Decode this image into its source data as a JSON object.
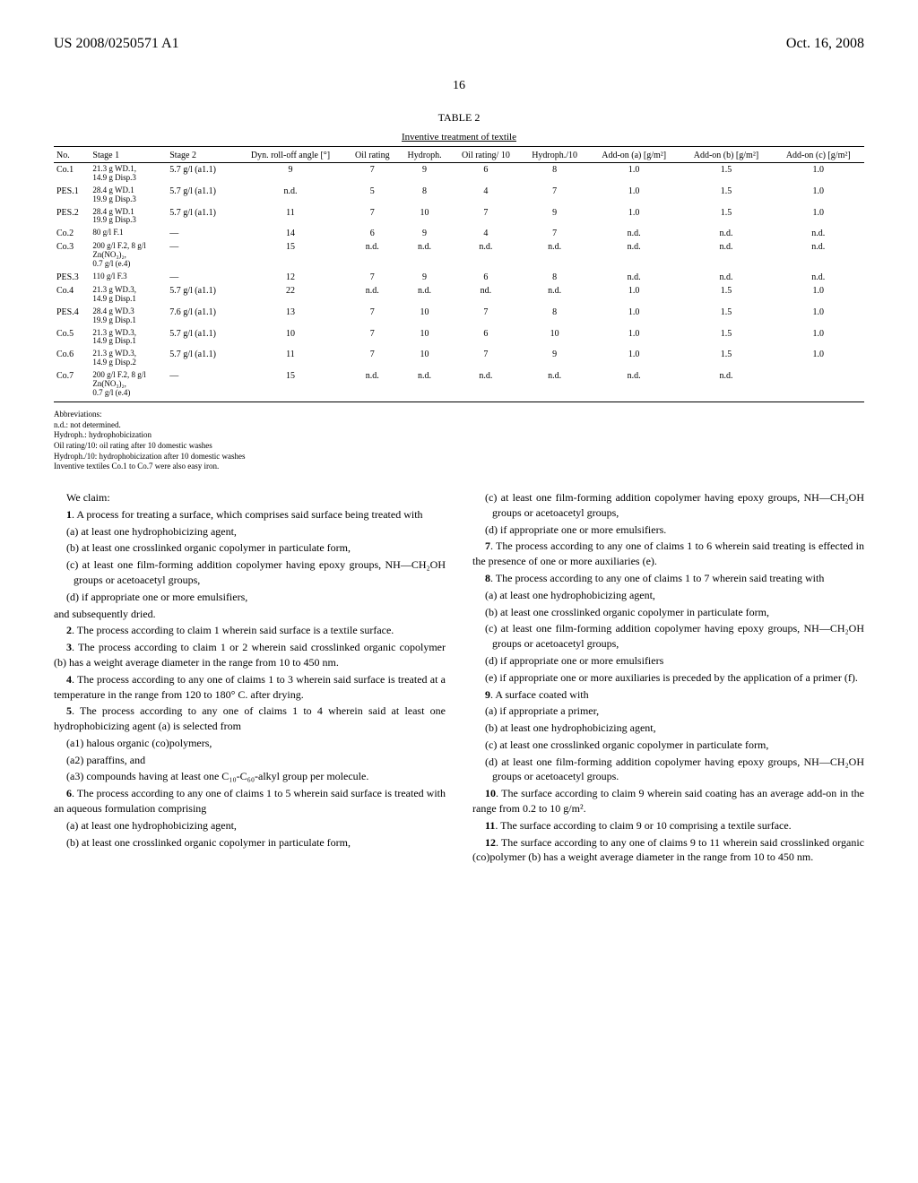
{
  "header": {
    "left": "US 2008/0250571 A1",
    "right": "Oct. 16, 2008"
  },
  "page_number": "16",
  "table": {
    "title": "TABLE 2",
    "subtitle": "Inventive treatment of textile",
    "columns": [
      "No.",
      "Stage 1",
      "Stage 2",
      "Dyn. roll-off angle [°]",
      "Oil rating",
      "Hydroph.",
      "Oil rating/ 10",
      "Hydroph./10",
      "Add-on (a) [g/m²]",
      "Add-on (b) [g/m²]",
      "Add-on (c) [g/m²]"
    ],
    "rows": [
      [
        "Co.1",
        {
          "l1": "21.3 g WD.1,",
          "l2": "14.9 g Disp.3"
        },
        "5.7 g/l (a1.1)",
        "9",
        "7",
        "9",
        "6",
        "8",
        "1.0",
        "1.5",
        "1.0"
      ],
      [
        "PES.1",
        {
          "l1": "28.4 g WD.1",
          "l2": "19.9 g Disp.3"
        },
        "5.7 g/l (a1.1)",
        "n.d.",
        "5",
        "8",
        "4",
        "7",
        "1.0",
        "1.5",
        "1.0"
      ],
      [
        "PES.2",
        {
          "l1": "28.4 g WD.1",
          "l2": "19.9 g Disp.3"
        },
        "5.7 g/l (a1.1)",
        "11",
        "7",
        "10",
        "7",
        "9",
        "1.0",
        "1.5",
        "1.0"
      ],
      [
        "Co.2",
        {
          "l1": "80 g/l F.1"
        },
        "—",
        "14",
        "6",
        "9",
        "4",
        "7",
        "n.d.",
        "n.d.",
        "n.d."
      ],
      [
        "Co.3",
        {
          "l1": "200 g/l F.2, 8 g/l",
          "l2": "Zn(NO₃)₂,",
          "l3": "0.7 g/l (e.4)"
        },
        "—",
        "15",
        "n.d.",
        "n.d.",
        "n.d.",
        "n.d.",
        "n.d.",
        "n.d.",
        "n.d."
      ],
      [
        "PES.3",
        {
          "l1": "110 g/l F.3"
        },
        "—",
        "12",
        "7",
        "9",
        "6",
        "8",
        "n.d.",
        "n.d.",
        "n.d."
      ],
      [
        "Co.4",
        {
          "l1": "21.3 g WD.3,",
          "l2": "14.9 g Disp.1"
        },
        "5.7 g/l (a1.1)",
        "22",
        "n.d.",
        "n.d.",
        "nd.",
        "n.d.",
        "1.0",
        "1.5",
        "1.0"
      ],
      [
        "PES.4",
        {
          "l1": "28.4 g WD.3",
          "l2": "19.9 g Disp.1"
        },
        "7.6 g/l (a1.1)",
        "13",
        "7",
        "10",
        "7",
        "8",
        "1.0",
        "1.5",
        "1.0"
      ],
      [
        "Co.5",
        {
          "l1": "21.3 g WD.3,",
          "l2": "14.9 g Disp.1"
        },
        "5.7 g/l (a1.1)",
        "10",
        "7",
        "10",
        "6",
        "10",
        "1.0",
        "1.5",
        "1.0"
      ],
      [
        "Co.6",
        {
          "l1": "21.3 g WD.3,",
          "l2": "14.9 g Disp.2"
        },
        "5.7 g/l (a1.1)",
        "11",
        "7",
        "10",
        "7",
        "9",
        "1.0",
        "1.5",
        "1.0"
      ],
      [
        "Co.7",
        {
          "l1": "200 g/l F.2, 8 g/l",
          "l2": "Zn(NO₃)₂,",
          "l3": "0.7 g/l (e.4)"
        },
        "—",
        "15",
        "n.d.",
        "n.d.",
        "n.d.",
        "n.d.",
        "n.d.",
        "n.d.",
        ""
      ]
    ]
  },
  "abbreviations": {
    "title": "Abbreviations:",
    "lines": [
      "n.d.: not determined.",
      "Hydroph.: hydrophobicization",
      "Oil rating/10: oil rating after 10 domestic washes",
      "Hydroph./10: hydrophobicization after 10 domestic washes",
      "Inventive textiles Co.1 to Co.7 were also easy iron."
    ]
  },
  "claims": {
    "intro": "We claim:",
    "left": [
      {
        "n": "1",
        "text": ". A process for treating a surface, which comprises said surface being treated with",
        "items": [
          "(a) at least one hydrophobicizing agent,",
          "(b) at least one crosslinked organic copolymer in particulate form,",
          "(c) at least one film-forming addition copolymer having epoxy groups, NH—CH₂OH groups or acetoacetyl groups,",
          "(d) if appropriate one or more emulsifiers,"
        ],
        "after": "and subsequently dried."
      },
      {
        "n": "2",
        "text": ". The process according to claim 1 wherein said surface is a textile surface."
      },
      {
        "n": "3",
        "text": ". The process according to claim 1 or 2 wherein said crosslinked organic copolymer (b) has a weight average diameter in the range from 10 to 450 nm."
      },
      {
        "n": "4",
        "text": ". The process according to any one of claims 1 to 3 wherein said surface is treated at a temperature in the range from 120 to 180° C. after drying."
      },
      {
        "n": "5",
        "text": ". The process according to any one of claims 1 to 4 wherein said at least one hydrophobicizing agent (a) is selected from",
        "items": [
          "(a1) halous organic (co)polymers,",
          "(a2) paraffins, and",
          "(a3) compounds having at least one C₁₀-C₆₀-alkyl group per molecule."
        ]
      },
      {
        "n": "6",
        "text": ". The process according to any one of claims 1 to 5 wherein said surface is treated with an aqueous formulation comprising",
        "items": [
          "(a) at least one hydrophobicizing agent,",
          "(b) at least one crosslinked organic copolymer in particulate form,"
        ]
      }
    ],
    "right_cont_items": [
      "(c) at least one film-forming addition copolymer having epoxy groups, NH—CH₂OH groups or acetoacetyl groups,",
      "(d) if appropriate one or more emulsifiers."
    ],
    "right": [
      {
        "n": "7",
        "text": ". The process according to any one of claims 1 to 6 wherein said treating is effected in the presence of one or more auxiliaries (e)."
      },
      {
        "n": "8",
        "text": ". The process according to any one of claims 1 to 7 wherein said treating with",
        "items": [
          "(a) at least one hydrophobicizing agent,",
          "(b) at least one crosslinked organic copolymer in particulate form,",
          "(c) at least one film-forming addition copolymer having epoxy groups, NH—CH₂OH groups or acetoacetyl groups,",
          "(d) if appropriate one or more emulsifiers",
          "(e) if appropriate one or more auxiliaries is preceded by the application of a primer (f)."
        ]
      },
      {
        "n": "9",
        "text": ". A surface coated with",
        "items": [
          "(a) if appropriate a primer,",
          "(b) at least one hydrophobicizing agent,",
          "(c) at least one crosslinked organic copolymer in particulate form,",
          "(d) at least one film-forming addition copolymer having epoxy groups, NH—CH₂OH groups or acetoacetyl groups."
        ]
      },
      {
        "n": "10",
        "text": ". The surface according to claim 9 wherein said coating has an average add-on in the range from 0.2 to 10 g/m²."
      },
      {
        "n": "11",
        "text": ". The surface according to claim 9 or 10 comprising a textile surface."
      },
      {
        "n": "12",
        "text": ". The surface according to any one of claims 9 to 11 wherein said crosslinked organic (co)polymer (b) has a weight average diameter in the range from 10 to 450 nm."
      }
    ]
  }
}
